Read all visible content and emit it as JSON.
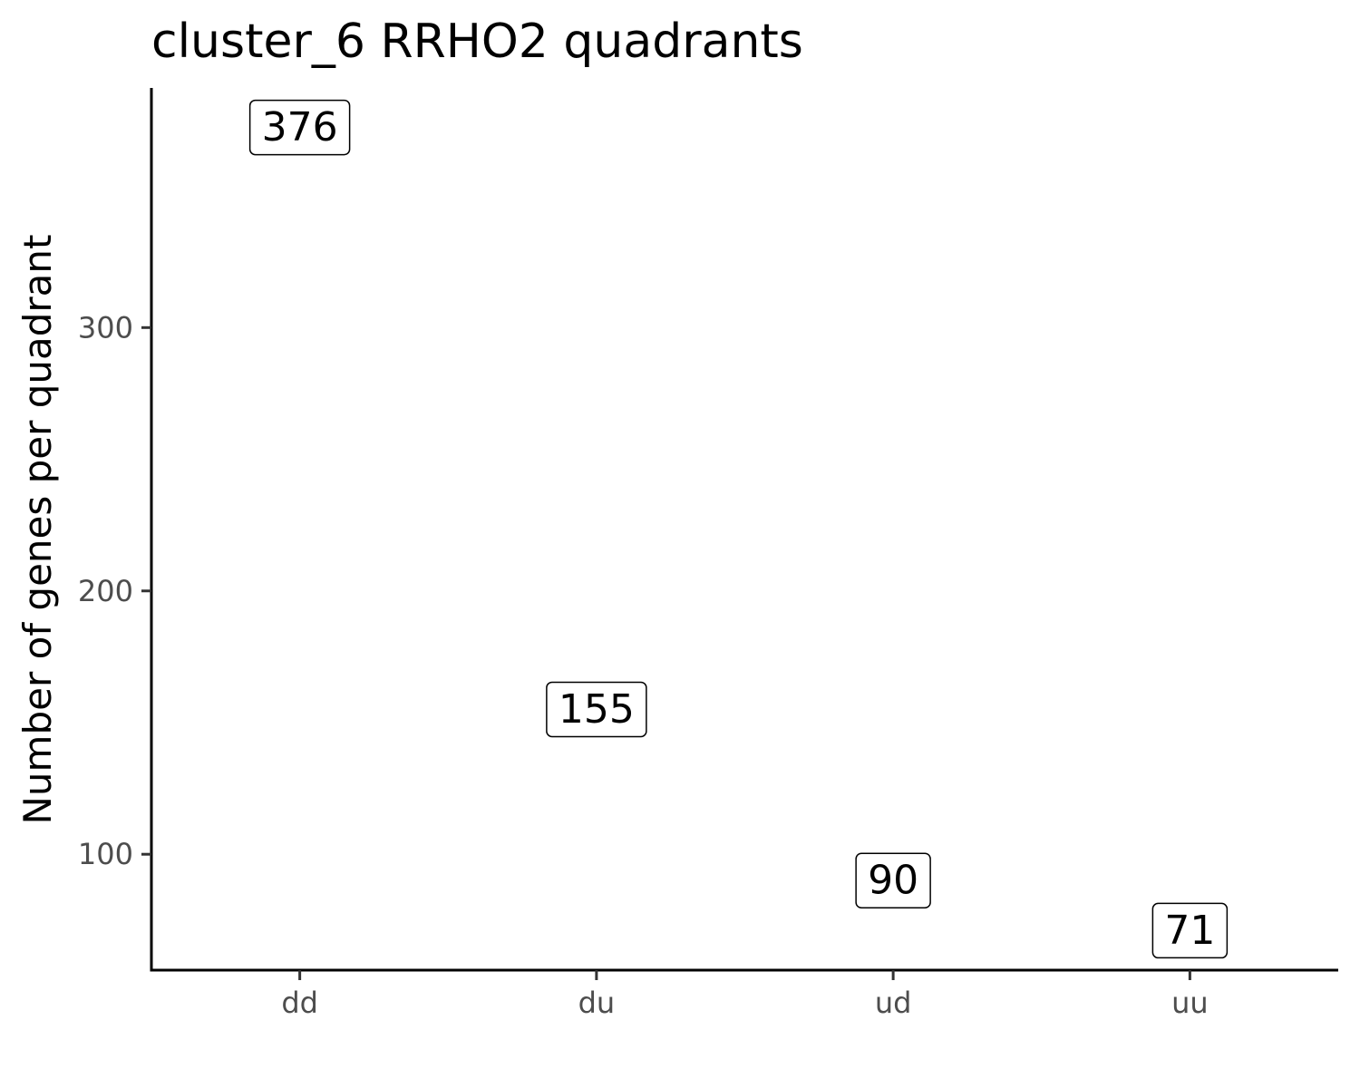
{
  "chart_data": {
    "type": "scatter",
    "title": "cluster_6 RRHO2 quadrants",
    "xlabel": "",
    "ylabel": "Number of genes per quadrant",
    "categories": [
      "dd",
      "du",
      "ud",
      "uu"
    ],
    "values": [
      376,
      155,
      90,
      71
    ],
    "data_labels": [
      "376",
      "155",
      "90",
      "71"
    ],
    "yticks": [
      100,
      200,
      300
    ],
    "ytick_labels": [
      "100",
      "200",
      "300"
    ],
    "ylim": [
      56,
      391
    ],
    "grid": false,
    "legend": "none"
  }
}
